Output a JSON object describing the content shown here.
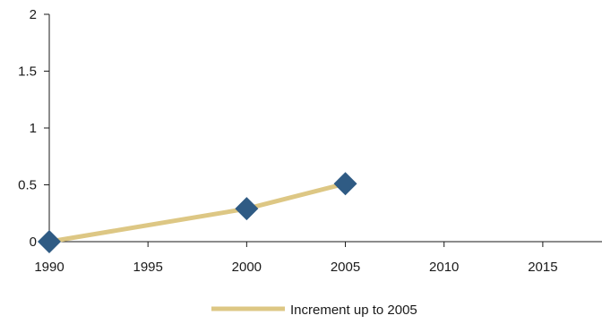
{
  "chart_data": {
    "type": "line",
    "title": "",
    "xlabel": "",
    "ylabel": "",
    "xlim": [
      1990,
      2018
    ],
    "ylim": [
      0,
      2
    ],
    "x_ticks": [
      "1990",
      "1995",
      "2000",
      "2005",
      "2010",
      "2015"
    ],
    "y_ticks": [
      "0",
      "0.5",
      "1",
      "1.5",
      "2"
    ],
    "grid": false,
    "legend_position": "bottom-center",
    "series": [
      {
        "name": "Increment up to 2005",
        "x": [
          1990,
          2000,
          2005
        ],
        "y": [
          0,
          0.29,
          0.51
        ],
        "line_color": "#ddc784",
        "marker_color": "#2f5b84"
      }
    ]
  }
}
